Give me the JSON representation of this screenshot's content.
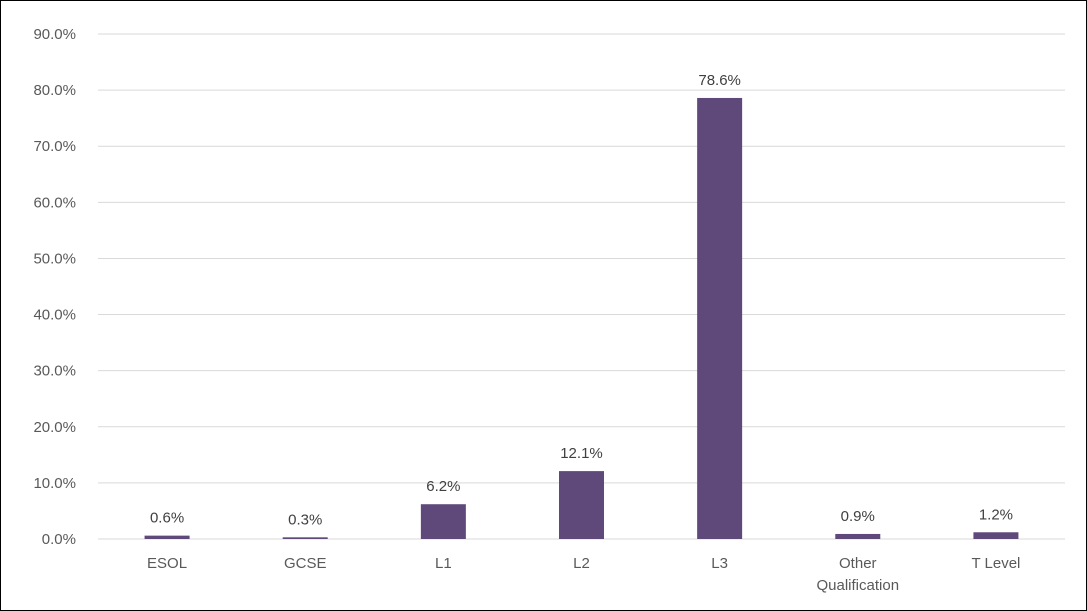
{
  "chart_data": {
    "type": "bar",
    "title": "",
    "xlabel": "",
    "ylabel": "",
    "categories": [
      "ESOL",
      "GCSE",
      "L1",
      "L2",
      "L3",
      "Other Qualification",
      "T Level"
    ],
    "category_label_lines": [
      [
        "ESOL"
      ],
      [
        "GCSE"
      ],
      [
        "L1"
      ],
      [
        "L2"
      ],
      [
        "L3"
      ],
      [
        "Other",
        "Qualification"
      ],
      [
        "T Level"
      ]
    ],
    "values": [
      0.6,
      0.3,
      6.2,
      12.1,
      78.6,
      0.9,
      1.2
    ],
    "data_labels": [
      "0.6%",
      "0.3%",
      "6.2%",
      "12.1%",
      "78.6%",
      "0.9%",
      "1.2%"
    ],
    "ylim": [
      0,
      90
    ],
    "yticks": [
      0,
      10,
      20,
      30,
      40,
      50,
      60,
      70,
      80,
      90
    ],
    "ytick_labels": [
      "0.0%",
      "10.0%",
      "20.0%",
      "30.0%",
      "40.0%",
      "50.0%",
      "60.0%",
      "70.0%",
      "80.0%",
      "90.0%"
    ],
    "grid": true,
    "legend": "none",
    "colors": {
      "bar": "#5f497a",
      "gridline": "#d9d9d9",
      "axis_text": "#595959",
      "label_text": "#404040"
    }
  }
}
